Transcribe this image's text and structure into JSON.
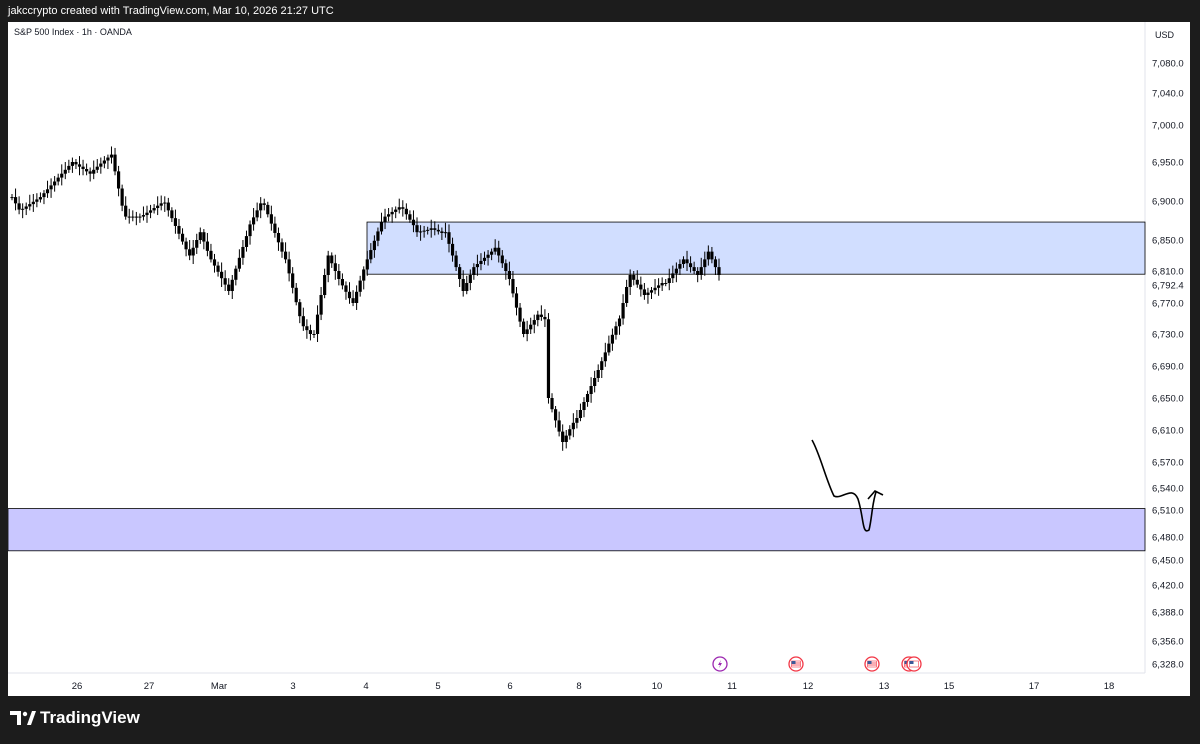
{
  "header": {
    "attribution": "jakccrypto created with TradingView.com, Mar 10, 2026 21:27 UTC"
  },
  "footer": {
    "brand": "TradingView"
  },
  "chart_data": {
    "type": "candlestick",
    "title": "S&P 500 Index · 1h · OANDA",
    "currency": "USD",
    "last_price": "6,792.4",
    "y_ticks": [
      {
        "v": 6328,
        "label": "6,328.0"
      },
      {
        "v": 6356,
        "label": "6,356.0"
      },
      {
        "v": 6388,
        "label": "6,388.0"
      },
      {
        "v": 6420,
        "label": "6,420.0"
      },
      {
        "v": 6450,
        "label": "6,450.0"
      },
      {
        "v": 6480,
        "label": "6,480.0"
      },
      {
        "v": 6510,
        "label": "6,510.0"
      },
      {
        "v": 6540,
        "label": "6,540.0"
      },
      {
        "v": 6570,
        "label": "6,570.0"
      },
      {
        "v": 6610,
        "label": "6,610.0"
      },
      {
        "v": 6650,
        "label": "6,650.0"
      },
      {
        "v": 6690,
        "label": "6,690.0"
      },
      {
        "v": 6730,
        "label": "6,730.0"
      },
      {
        "v": 6770,
        "label": "6,770.0"
      },
      {
        "v": 6810,
        "label": "6,810.0"
      },
      {
        "v": 6850,
        "label": "6,850.0"
      },
      {
        "v": 6900,
        "label": "6,900.0"
      },
      {
        "v": 6950,
        "label": "6,950.0"
      },
      {
        "v": 7000,
        "label": "7,000.0"
      },
      {
        "v": 7040,
        "label": "7,040.0"
      },
      {
        "v": 7080,
        "label": "7,080.0"
      }
    ],
    "x_ticks": [
      "26",
      "27",
      "Mar",
      "3",
      "4",
      "5",
      "6",
      "8",
      "10",
      "11",
      "12",
      "13",
      "15",
      "17",
      "18"
    ],
    "zones": [
      {
        "name": "resistance-zone",
        "y_low": 6806,
        "y_high": 6873,
        "x_from": "4",
        "fill": "#d1deff",
        "stroke": "#000000"
      },
      {
        "name": "support-zone",
        "y_low": 6462,
        "y_high": 6512,
        "x_from": "start",
        "fill": "#c9c7ff",
        "stroke": "#000000"
      }
    ],
    "events": [
      {
        "icon": "lightning-icon",
        "x": "11",
        "color": "#9c27b0"
      },
      {
        "icon": "us-flag-icon",
        "x": "12",
        "color": "#f23645"
      },
      {
        "icon": "us-flag-icon",
        "x": "13",
        "color": "#f23645"
      },
      {
        "icon": "us-flag-icon",
        "x": "14",
        "color": "#f23645"
      }
    ],
    "candle_color": "#000000",
    "path_segments": [
      {
        "start": 6905,
        "n": 3,
        "delta": -8
      },
      {
        "start": 6890,
        "n": 6,
        "delta": 3
      },
      {
        "start": 6910,
        "n": 8,
        "delta": 5
      },
      {
        "start": 6950,
        "n": 6,
        "delta": -3
      },
      {
        "start": 6940,
        "n": 5,
        "delta": 4
      },
      {
        "start": 6960,
        "n": 4,
        "delta": -22
      },
      {
        "start": 6880,
        "n": 5,
        "delta": 0
      },
      {
        "start": 6882,
        "n": 6,
        "delta": 3
      },
      {
        "start": 6898,
        "n": 7,
        "delta": -10
      },
      {
        "start": 6830,
        "n": 3,
        "delta": 10
      },
      {
        "start": 6860,
        "n": 3,
        "delta": -12
      },
      {
        "start": 6825,
        "n": 5,
        "delta": -8
      },
      {
        "start": 6785,
        "n": 6,
        "delta": 14
      },
      {
        "start": 6870,
        "n": 4,
        "delta": 9
      },
      {
        "start": 6895,
        "n": 6,
        "delta": -12
      },
      {
        "start": 6825,
        "n": 5,
        "delta": -18
      },
      {
        "start": 6740,
        "n": 3,
        "delta": -5
      },
      {
        "start": 6730,
        "n": 4,
        "delta": 25
      },
      {
        "start": 6830,
        "n": 3,
        "delta": -10
      },
      {
        "start": 6800,
        "n": 4,
        "delta": -8
      },
      {
        "start": 6770,
        "n": 4,
        "delta": 14
      },
      {
        "start": 6825,
        "n": 5,
        "delta": 12
      },
      {
        "start": 6880,
        "n": 5,
        "delta": 3
      },
      {
        "start": 6890,
        "n": 4,
        "delta": -7
      },
      {
        "start": 6860,
        "n": 4,
        "delta": 1
      },
      {
        "start": 6865,
        "n": 4,
        "delta": -2
      },
      {
        "start": 6860,
        "n": 5,
        "delta": -15
      },
      {
        "start": 6785,
        "n": 3,
        "delta": 10
      },
      {
        "start": 6815,
        "n": 6,
        "delta": 4
      },
      {
        "start": 6840,
        "n": 4,
        "delta": -10
      },
      {
        "start": 6800,
        "n": 4,
        "delta": -18
      },
      {
        "start": 6730,
        "n": 4,
        "delta": 6
      },
      {
        "start": 6755,
        "n": 3,
        "delta": -3
      },
      {
        "start": 6650,
        "n": 4,
        "delta": -14
      },
      {
        "start": 6595,
        "n": 4,
        "delta": 8
      },
      {
        "start": 6625,
        "n": 6,
        "delta": 10
      },
      {
        "start": 6685,
        "n": 6,
        "delta": 11
      },
      {
        "start": 6750,
        "n": 3,
        "delta": 20
      },
      {
        "start": 6805,
        "n": 4,
        "delta": -6
      },
      {
        "start": 6780,
        "n": 6,
        "delta": 3
      },
      {
        "start": 6795,
        "n": 5,
        "delta": 6
      },
      {
        "start": 6825,
        "n": 4,
        "delta": -5
      },
      {
        "start": 6805,
        "n": 3,
        "delta": 10
      },
      {
        "start": 6835,
        "n": 4,
        "delta": -10
      }
    ]
  }
}
